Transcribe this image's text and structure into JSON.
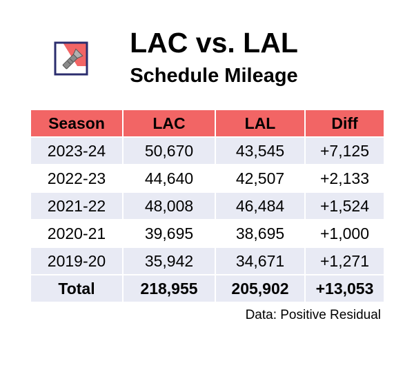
{
  "header": {
    "title": "LAC vs. LAL",
    "subtitle": "Schedule Mileage",
    "logo_icon": "flashlight-icon"
  },
  "table": {
    "columns": [
      "Season",
      "LAC",
      "LAL",
      "Diff"
    ],
    "rows": [
      [
        "2023-24",
        "50,670",
        "43,545",
        "+7,125"
      ],
      [
        "2022-23",
        "44,640",
        "42,507",
        "+2,133"
      ],
      [
        "2021-22",
        "48,008",
        "46,484",
        "+1,524"
      ],
      [
        "2020-21",
        "39,695",
        "38,695",
        "+1,000"
      ],
      [
        "2019-20",
        "35,942",
        "34,671",
        "+1,271"
      ]
    ],
    "total": [
      "Total",
      "218,955",
      "205,902",
      "+13,053"
    ]
  },
  "footer": {
    "source": "Data: Positive Residual"
  },
  "colors": {
    "header_bg": "#f26565",
    "stripe_bg": "#e8eaf4",
    "logo_navy": "#2b2d6e",
    "logo_red": "#f26565"
  }
}
